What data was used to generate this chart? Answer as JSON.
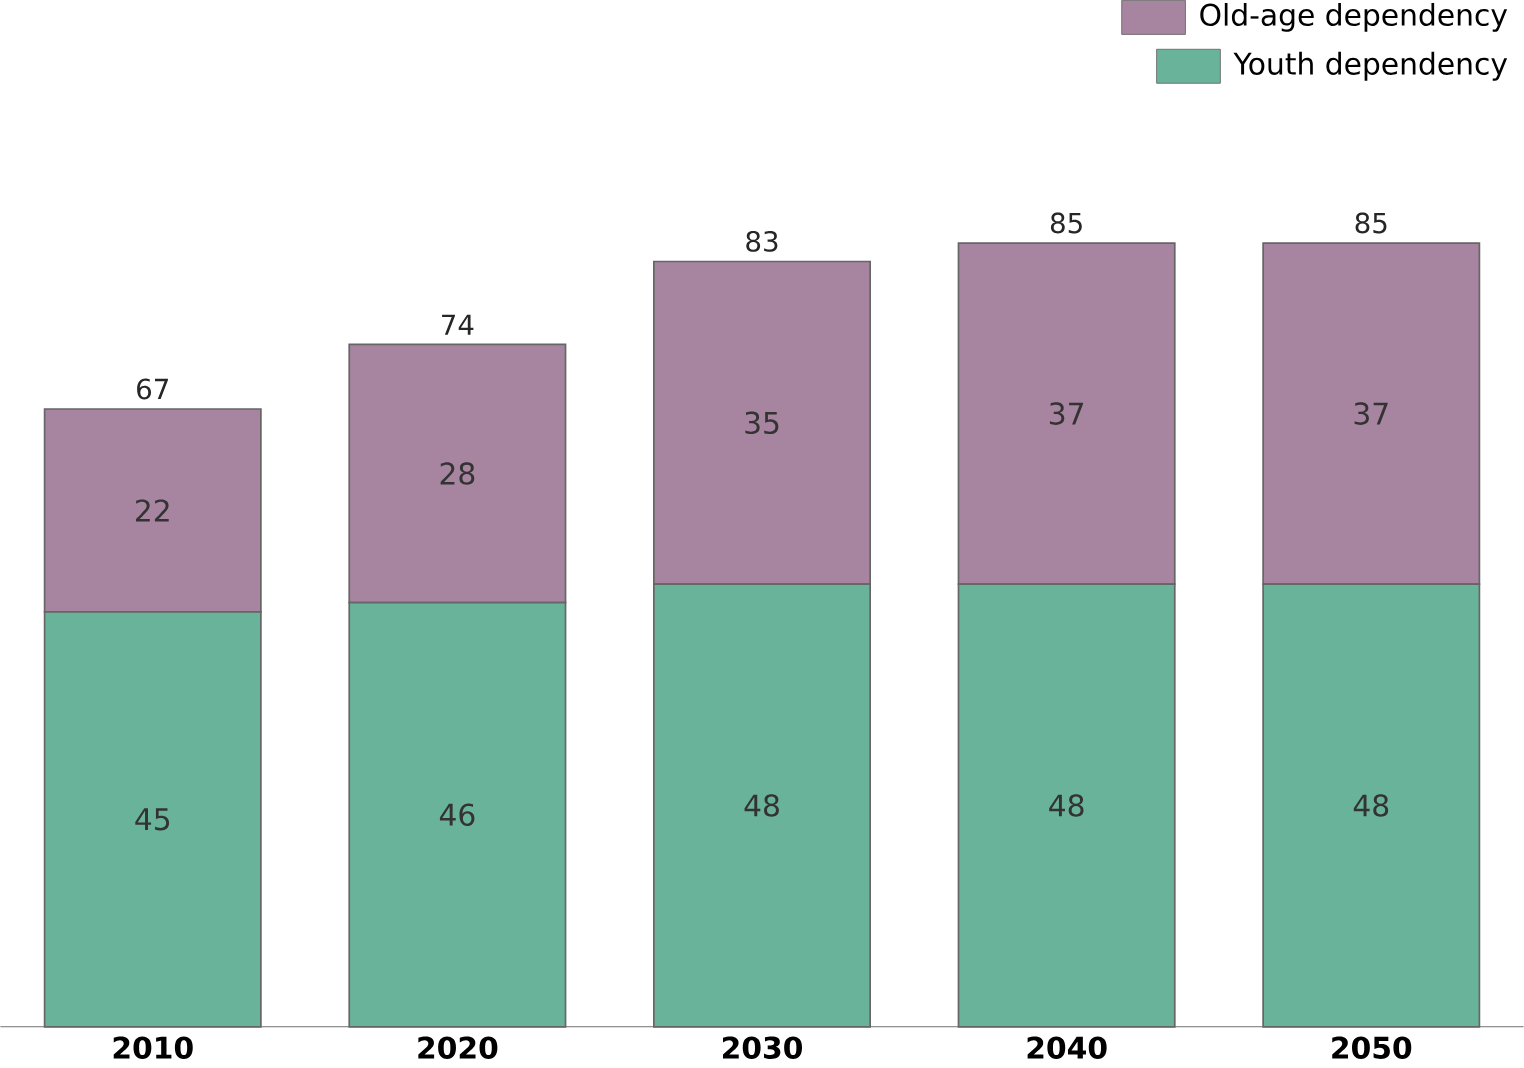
{
  "chart_data": {
    "type": "bar",
    "stacked": true,
    "categories": [
      "2010",
      "2020",
      "2030",
      "2040",
      "2050"
    ],
    "series": [
      {
        "name": "Youth dependency",
        "color": "#6ab39b",
        "values": [
          45,
          46,
          48,
          48,
          48
        ]
      },
      {
        "name": "Old-age dependency",
        "color": "#a7849f",
        "values": [
          22,
          28,
          35,
          37,
          37
        ]
      }
    ],
    "totals": [
      "67",
      "74",
      "83",
      "85",
      "85"
    ],
    "data_labels": true,
    "legend": "top right"
  }
}
